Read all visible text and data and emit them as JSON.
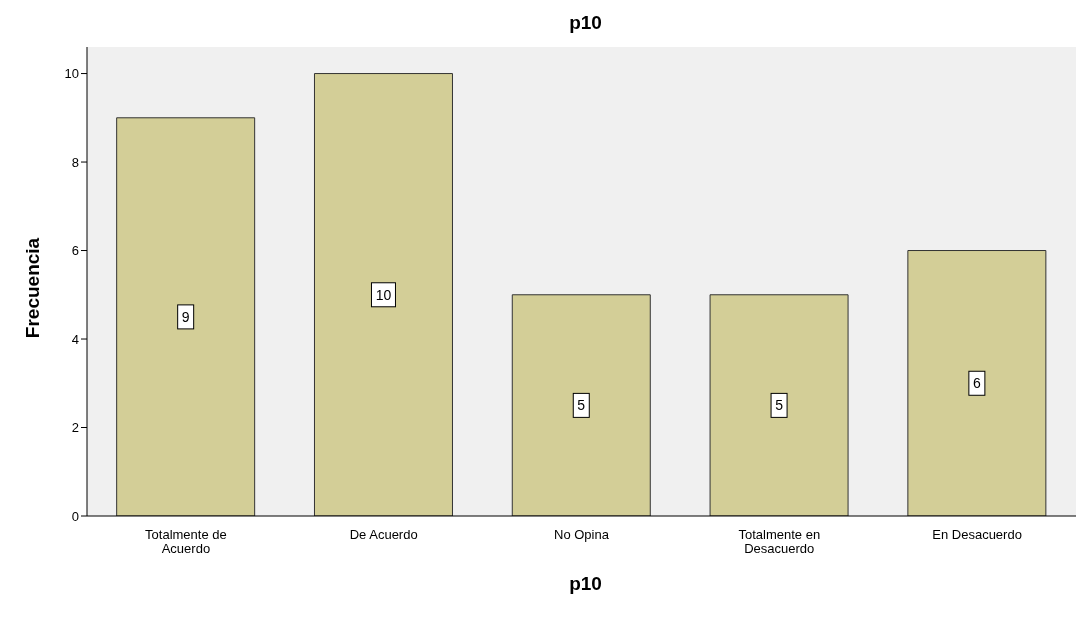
{
  "chart_data": {
    "type": "bar",
    "title": "p10",
    "xlabel": "p10",
    "ylabel": "Frecuencia",
    "categories": [
      "Totalmente de Acuerdo",
      "De Acuerdo",
      "No Opina",
      "Totalmente en Desacuerdo",
      "En Desacuerdo"
    ],
    "values": [
      9,
      10,
      5,
      5,
      6
    ],
    "color": "#d3ce97",
    "ylim": [
      0,
      10.6
    ],
    "yticks": [
      0,
      2,
      4,
      6,
      8,
      10
    ],
    "grid": false,
    "legend": false,
    "data_labels": true
  }
}
